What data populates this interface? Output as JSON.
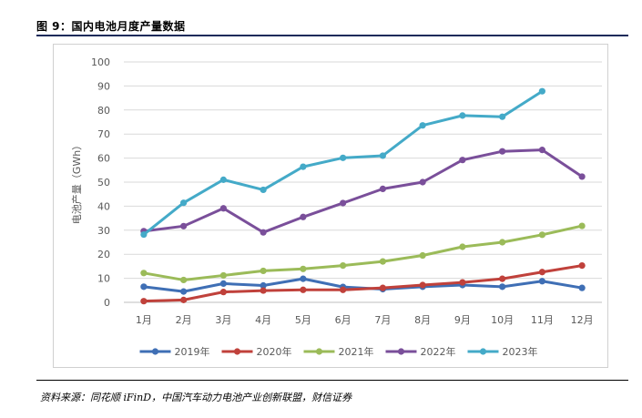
{
  "figure": {
    "title": "图 9：国内电池月度产量数据",
    "source": "资料来源：同花顺 iFinD，中国汽车动力电池产业创新联盟，财信证券"
  },
  "chart_data": {
    "type": "line",
    "title": "",
    "xlabel": "",
    "ylabel": "电池产量（GWh）",
    "categories": [
      "1月",
      "2月",
      "3月",
      "4月",
      "5月",
      "6月",
      "7月",
      "8月",
      "9月",
      "10月",
      "11月",
      "12月"
    ],
    "ylim": [
      0,
      100
    ],
    "yticks": [
      0,
      10,
      20,
      30,
      40,
      50,
      60,
      70,
      80,
      90,
      100
    ],
    "grid": true,
    "legend_position": "bottom",
    "series": [
      {
        "name": "2019年",
        "color": "#3f6fb5",
        "values": [
          6.5,
          4.5,
          7.8,
          7.0,
          9.8,
          6.4,
          5.5,
          6.5,
          7.2,
          6.5,
          8.8,
          6.0
        ]
      },
      {
        "name": "2020年",
        "color": "#c0413b",
        "values": [
          0.5,
          1.0,
          4.3,
          4.9,
          5.2,
          5.2,
          6.0,
          7.2,
          8.3,
          9.8,
          12.6,
          15.3
        ]
      },
      {
        "name": "2021年",
        "color": "#9bbb59",
        "values": [
          12.2,
          9.3,
          11.2,
          13.1,
          13.9,
          15.3,
          17.0,
          19.5,
          23.1,
          25.0,
          28.1,
          31.8
        ]
      },
      {
        "name": "2022年",
        "color": "#7a4f9a",
        "values": [
          29.6,
          31.7,
          39.1,
          29.1,
          35.5,
          41.3,
          47.2,
          50.0,
          59.2,
          62.8,
          63.4,
          52.3
        ]
      },
      {
        "name": "2023年",
        "color": "#44aac8",
        "values": [
          28.2,
          41.4,
          51.0,
          46.8,
          56.4,
          60.1,
          61.0,
          73.6,
          77.7,
          77.2,
          87.8,
          null
        ]
      }
    ]
  }
}
